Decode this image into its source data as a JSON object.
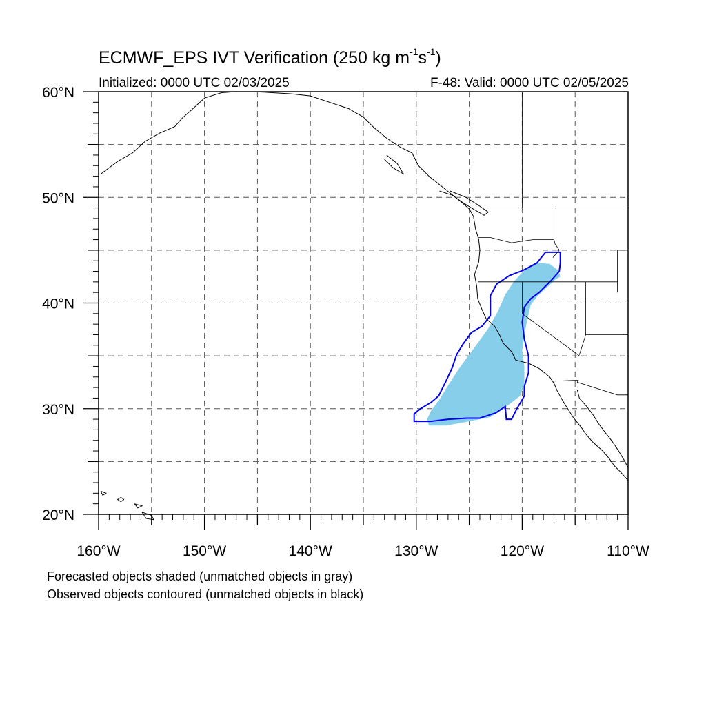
{
  "title": {
    "main": "ECMWF_EPS IVT Verification (250 kg m",
    "exp1": "-1",
    "mid": "s",
    "exp2": "-1",
    "end": ")"
  },
  "initialized": "Initialized: 0000 UTC 02/03/2025",
  "valid": "F-48: Valid: 0000 UTC 02/05/2025",
  "lat_labels": [
    "60°N",
    "50°N",
    "40°N",
    "30°N",
    "20°N"
  ],
  "lon_labels": [
    "160°W",
    "150°W",
    "140°W",
    "130°W",
    "120°W",
    "110°W"
  ],
  "captions": [
    "Forecasted objects shaded (unmatched objects in gray)",
    "Observed objects contoured (unmatched objects in black)"
  ],
  "colors": {
    "forecast_fill": "#87ceeb",
    "observed_contour": "#0000ee",
    "grid": "#555555",
    "coast": "#000000"
  },
  "map_extent": {
    "lon": [
      -160,
      -110
    ],
    "lat": [
      20,
      60
    ]
  },
  "forecast_object": [
    [
      -128.8,
      28.4
    ],
    [
      -127.2,
      28.4
    ],
    [
      -125.0,
      28.8
    ],
    [
      -123.0,
      29.2
    ],
    [
      -121.5,
      30.2
    ],
    [
      -120.2,
      31.2
    ],
    [
      -119.8,
      32.3
    ],
    [
      -119.8,
      34.0
    ],
    [
      -120.0,
      35.5
    ],
    [
      -119.8,
      37.0
    ],
    [
      -119.5,
      38.5
    ],
    [
      -119.2,
      39.8
    ],
    [
      -118.6,
      40.6
    ],
    [
      -118.0,
      41.2
    ],
    [
      -117.4,
      41.7
    ],
    [
      -116.9,
      42.2
    ],
    [
      -116.4,
      42.5
    ],
    [
      -116.6,
      43.1
    ],
    [
      -117.4,
      43.7
    ],
    [
      -118.6,
      43.8
    ],
    [
      -119.9,
      43.0
    ],
    [
      -120.8,
      42.0
    ],
    [
      -121.6,
      40.8
    ],
    [
      -122.3,
      39.2
    ],
    [
      -123.2,
      37.6
    ],
    [
      -124.2,
      36.2
    ],
    [
      -125.1,
      35.0
    ],
    [
      -126.1,
      33.6
    ],
    [
      -127.0,
      32.2
    ],
    [
      -127.8,
      30.9
    ],
    [
      -128.6,
      29.8
    ],
    [
      -129.0,
      29.0
    ]
  ],
  "observed_object": [
    [
      -130.2,
      29.5
    ],
    [
      -130.2,
      28.8
    ],
    [
      -128.6,
      28.8
    ],
    [
      -127.0,
      29.0
    ],
    [
      -125.2,
      29.1
    ],
    [
      -124.0,
      29.1
    ],
    [
      -122.5,
      29.6
    ],
    [
      -121.6,
      30.2
    ],
    [
      -121.5,
      29.0
    ],
    [
      -121.0,
      29.0
    ],
    [
      -120.5,
      30.0
    ],
    [
      -119.8,
      31.2
    ],
    [
      -119.8,
      32.1
    ],
    [
      -119.4,
      33.4
    ],
    [
      -119.4,
      35.0
    ],
    [
      -119.8,
      36.6
    ],
    [
      -120.0,
      38.2
    ],
    [
      -119.8,
      39.6
    ],
    [
      -119.2,
      40.4
    ],
    [
      -118.4,
      41.0
    ],
    [
      -117.8,
      41.6
    ],
    [
      -117.2,
      42.2
    ],
    [
      -116.5,
      43.0
    ],
    [
      -116.4,
      43.8
    ],
    [
      -116.4,
      44.8
    ],
    [
      -117.8,
      44.8
    ],
    [
      -118.6,
      43.8
    ],
    [
      -119.9,
      43.1
    ],
    [
      -121.2,
      42.6
    ],
    [
      -122.4,
      41.8
    ],
    [
      -123.0,
      40.7
    ],
    [
      -123.0,
      38.8
    ],
    [
      -123.8,
      37.8
    ],
    [
      -124.8,
      37.2
    ],
    [
      -125.6,
      36.1
    ],
    [
      -126.2,
      35.1
    ],
    [
      -126.6,
      33.9
    ],
    [
      -127.2,
      32.6
    ],
    [
      -127.9,
      31.2
    ],
    [
      -128.6,
      30.6
    ],
    [
      -129.6,
      30.0
    ]
  ],
  "coastlines": [
    [
      [
        -159.8,
        52.2
      ],
      [
        -158.2,
        53.4
      ],
      [
        -156.8,
        54.2
      ],
      [
        -155.6,
        55.3
      ],
      [
        -154.2,
        56.1
      ],
      [
        -152.8,
        56.7
      ],
      [
        -152.1,
        57.5
      ],
      [
        -151.2,
        58.3
      ],
      [
        -150.0,
        59.4
      ],
      [
        -148.4,
        59.9
      ],
      [
        -147.0,
        60.0
      ]
    ],
    [
      [
        -147.0,
        60.0
      ],
      [
        -145.2,
        60.0
      ],
      [
        -143.6,
        59.9
      ],
      [
        -141.8,
        59.8
      ],
      [
        -140.0,
        59.6
      ],
      [
        -138.2,
        59.0
      ],
      [
        -136.4,
        58.4
      ],
      [
        -135.0,
        57.6
      ],
      [
        -134.0,
        56.6
      ],
      [
        -132.8,
        55.6
      ],
      [
        -131.6,
        54.8
      ],
      [
        -130.4,
        54.2
      ],
      [
        -129.8,
        53.0
      ],
      [
        -128.8,
        52.0
      ],
      [
        -127.8,
        51.2
      ],
      [
        -126.8,
        50.4
      ],
      [
        -125.8,
        49.6
      ],
      [
        -125.0,
        48.9
      ],
      [
        -124.6,
        48.2
      ],
      [
        -124.4,
        47.0
      ],
      [
        -124.1,
        46.0
      ],
      [
        -124.0,
        45.0
      ],
      [
        -124.1,
        43.9
      ],
      [
        -124.5,
        42.7
      ],
      [
        -124.3,
        41.6
      ],
      [
        -124.2,
        40.4
      ],
      [
        -123.8,
        39.4
      ],
      [
        -123.4,
        38.5
      ],
      [
        -122.6,
        37.8
      ],
      [
        -122.1,
        36.9
      ],
      [
        -121.8,
        36.2
      ],
      [
        -121.0,
        35.4
      ],
      [
        -120.6,
        34.6
      ],
      [
        -119.4,
        34.3
      ],
      [
        -118.4,
        33.8
      ],
      [
        -117.4,
        33.0
      ],
      [
        -117.0,
        32.4
      ],
      [
        -116.7,
        31.7
      ],
      [
        -116.2,
        30.8
      ],
      [
        -115.7,
        30.0
      ],
      [
        -115.2,
        29.2
      ],
      [
        -114.4,
        28.2
      ],
      [
        -114.0,
        27.6
      ],
      [
        -113.3,
        26.8
      ],
      [
        -112.4,
        26.0
      ],
      [
        -111.8,
        25.3
      ],
      [
        -111.3,
        24.6
      ],
      [
        -110.7,
        24.0
      ],
      [
        -110.0,
        23.2
      ]
    ],
    [
      [
        -114.8,
        31.8
      ],
      [
        -114.6,
        31.0
      ],
      [
        -113.9,
        30.2
      ],
      [
        -113.3,
        29.4
      ],
      [
        -112.8,
        28.6
      ],
      [
        -112.2,
        27.8
      ],
      [
        -111.5,
        26.9
      ],
      [
        -110.9,
        26.0
      ],
      [
        -110.3,
        25.0
      ],
      [
        -110.0,
        24.4
      ]
    ],
    [
      [
        -127.8,
        50.6
      ],
      [
        -126.6,
        50.2
      ],
      [
        -125.6,
        49.5
      ],
      [
        -124.8,
        49.0
      ],
      [
        -123.6,
        48.3
      ],
      [
        -123.2,
        48.6
      ],
      [
        -124.2,
        49.3
      ],
      [
        -125.3,
        50.0
      ],
      [
        -126.8,
        50.6
      ]
    ],
    [
      [
        -132.8,
        54.0
      ],
      [
        -131.8,
        53.2
      ],
      [
        -131.2,
        52.2
      ],
      [
        -132.2,
        52.8
      ],
      [
        -133.0,
        53.6
      ]
    ],
    [
      [
        -157.6,
        21.4
      ],
      [
        -157.9,
        21.6
      ],
      [
        -158.2,
        21.4
      ],
      [
        -157.9,
        21.2
      ],
      [
        -157.6,
        21.4
      ]
    ],
    [
      [
        -156.6,
        21.0
      ],
      [
        -155.9,
        20.8
      ],
      [
        -156.3,
        20.6
      ],
      [
        -156.6,
        21.0
      ]
    ],
    [
      [
        -155.9,
        20.2
      ],
      [
        -155.0,
        19.9
      ],
      [
        -154.8,
        19.5
      ],
      [
        -155.5,
        19.6
      ],
      [
        -155.9,
        20.2
      ]
    ],
    [
      [
        -159.8,
        22.2
      ],
      [
        -159.3,
        22.0
      ],
      [
        -159.6,
        21.8
      ],
      [
        -159.8,
        22.2
      ]
    ]
  ],
  "borders": [
    [
      [
        -123.3,
        49.0
      ],
      [
        -110.0,
        49.0
      ]
    ],
    [
      [
        -124.2,
        46.2
      ],
      [
        -123.0,
        46.2
      ],
      [
        -121.0,
        45.7
      ],
      [
        -119.0,
        46.0
      ],
      [
        -117.0,
        46.0
      ],
      [
        -116.9,
        45.6
      ],
      [
        -116.5,
        45.0
      ],
      [
        -117.1,
        44.3
      ]
    ],
    [
      [
        -124.2,
        42.0
      ],
      [
        -111.0,
        42.0
      ]
    ],
    [
      [
        -120.0,
        42.0
      ],
      [
        -120.0,
        39.0
      ],
      [
        -114.6,
        35.0
      ]
    ],
    [
      [
        -117.0,
        49.0
      ],
      [
        -117.0,
        46.0
      ]
    ],
    [
      [
        -114.0,
        42.0
      ],
      [
        -114.0,
        37.0
      ],
      [
        -114.6,
        35.1
      ]
    ],
    [
      [
        -111.0,
        45.0
      ],
      [
        -110.0,
        45.0
      ]
    ],
    [
      [
        -114.0,
        37.0
      ],
      [
        -110.0,
        37.0
      ]
    ],
    [
      [
        -117.1,
        32.6
      ],
      [
        -114.7,
        32.7
      ],
      [
        -114.8,
        32.5
      ],
      [
        -111.0,
        31.3
      ],
      [
        -110.0,
        31.3
      ]
    ],
    [
      [
        -120.0,
        60.0
      ],
      [
        -120.0,
        49.0
      ]
    ],
    [
      [
        -111.0,
        45.0
      ],
      [
        -111.0,
        41.0
      ]
    ]
  ]
}
